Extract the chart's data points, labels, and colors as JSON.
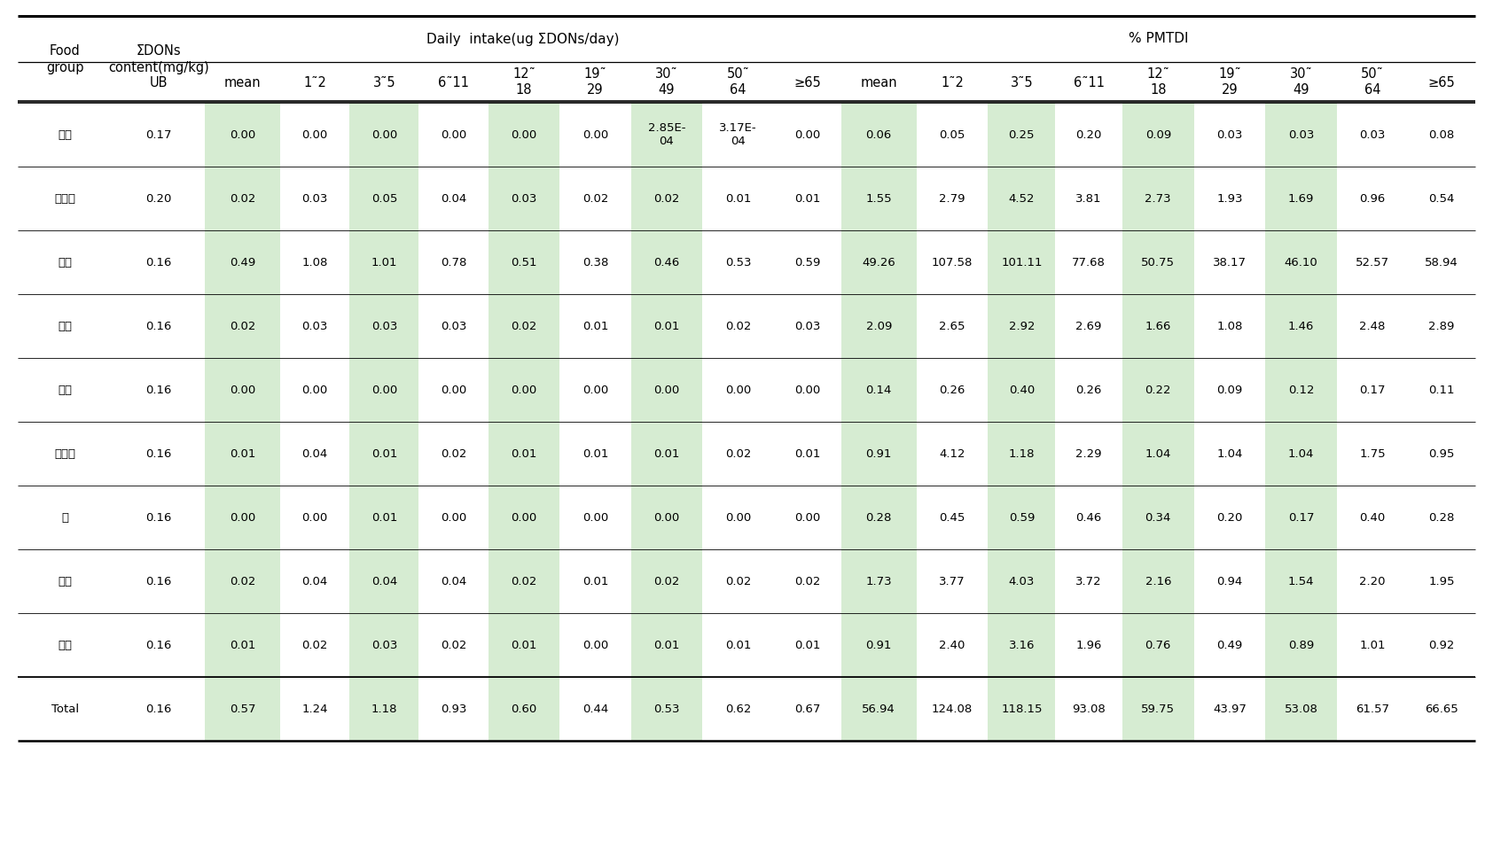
{
  "rows": [
    [
      "기장",
      "0.17",
      "0.00",
      "0.00",
      "0.00",
      "0.00",
      "0.00",
      "0.00",
      "2.85E-\n04",
      "3.17E-\n04",
      "0.00",
      "0.06",
      "0.05",
      "0.25",
      "0.20",
      "0.09",
      "0.03",
      "0.03",
      "0.03",
      "0.08"
    ],
    [
      "밀가루",
      "0.20",
      "0.02",
      "0.03",
      "0.05",
      "0.04",
      "0.03",
      "0.02",
      "0.02",
      "0.01",
      "0.01",
      "1.55",
      "2.79",
      "4.52",
      "3.81",
      "2.73",
      "1.93",
      "1.69",
      "0.96",
      "0.54"
    ],
    [
      "백미",
      "0.16",
      "0.49",
      "1.08",
      "1.01",
      "0.78",
      "0.51",
      "0.38",
      "0.46",
      "0.53",
      "0.59",
      "49.26",
      "107.58",
      "101.11",
      "77.68",
      "50.75",
      "38.17",
      "46.10",
      "52.57",
      "58.94"
    ],
    [
      "보리",
      "0.16",
      "0.02",
      "0.03",
      "0.03",
      "0.03",
      "0.02",
      "0.01",
      "0.01",
      "0.02",
      "0.03",
      "2.09",
      "2.65",
      "2.92",
      "2.69",
      "1.66",
      "1.08",
      "1.46",
      "2.48",
      "2.89"
    ],
    [
      "수수",
      "0.16",
      "0.00",
      "0.00",
      "0.00",
      "0.00",
      "0.00",
      "0.00",
      "0.00",
      "0.00",
      "0.00",
      "0.14",
      "0.26",
      "0.40",
      "0.26",
      "0.22",
      "0.09",
      "0.12",
      "0.17",
      "0.11"
    ],
    [
      "옥수수",
      "0.16",
      "0.01",
      "0.04",
      "0.01",
      "0.02",
      "0.01",
      "0.01",
      "0.01",
      "0.02",
      "0.01",
      "0.91",
      "4.12",
      "1.18",
      "2.29",
      "1.04",
      "1.04",
      "1.04",
      "1.75",
      "0.95"
    ],
    [
      "조",
      "0.16",
      "0.00",
      "0.00",
      "0.01",
      "0.00",
      "0.00",
      "0.00",
      "0.00",
      "0.00",
      "0.00",
      "0.28",
      "0.45",
      "0.59",
      "0.46",
      "0.34",
      "0.20",
      "0.17",
      "0.40",
      "0.28"
    ],
    [
      "찹쌍",
      "0.16",
      "0.02",
      "0.04",
      "0.04",
      "0.04",
      "0.02",
      "0.01",
      "0.02",
      "0.02",
      "0.02",
      "1.73",
      "3.77",
      "4.03",
      "3.72",
      "2.16",
      "0.94",
      "1.54",
      "2.20",
      "1.95"
    ],
    [
      "현미",
      "0.16",
      "0.01",
      "0.02",
      "0.03",
      "0.02",
      "0.01",
      "0.00",
      "0.01",
      "0.01",
      "0.01",
      "0.91",
      "2.40",
      "3.16",
      "1.96",
      "0.76",
      "0.49",
      "0.89",
      "1.01",
      "0.92"
    ]
  ],
  "total_row": [
    "Total",
    "0.16",
    "0.57",
    "1.24",
    "1.18",
    "0.93",
    "0.60",
    "0.44",
    "0.53",
    "0.62",
    "0.67",
    "56.94",
    "124.08",
    "118.15",
    "93.08",
    "59.75",
    "43.97",
    "53.08",
    "61.57",
    "66.65"
  ],
  "green_cols": [
    2,
    4,
    6,
    8,
    11,
    13,
    15,
    17
  ],
  "bg_color": "#ffffff",
  "green_color": "#d6ecd2",
  "text_color": "#000000",
  "header2_labels": [
    "UB",
    "mean",
    "1˜2",
    "3˜5",
    "6˜11",
    "12˜\n18",
    "19˜\n29",
    "30˜\n49",
    "50˜\n64",
    "≥65",
    "mean",
    "1˜2",
    "3˜5",
    "6˜11",
    "12˜\n18",
    "19˜\n29",
    "30˜\n49",
    "50˜\n64",
    "≥65"
  ],
  "daily_intake_label": "Daily  intake(ug ΣDONs/day)",
  "pmtdi_label": "% PMTDI",
  "food_group_label": "Food\ngroup",
  "sigma_dons_label": "ΣDONs\ncontent(mg/kg)"
}
